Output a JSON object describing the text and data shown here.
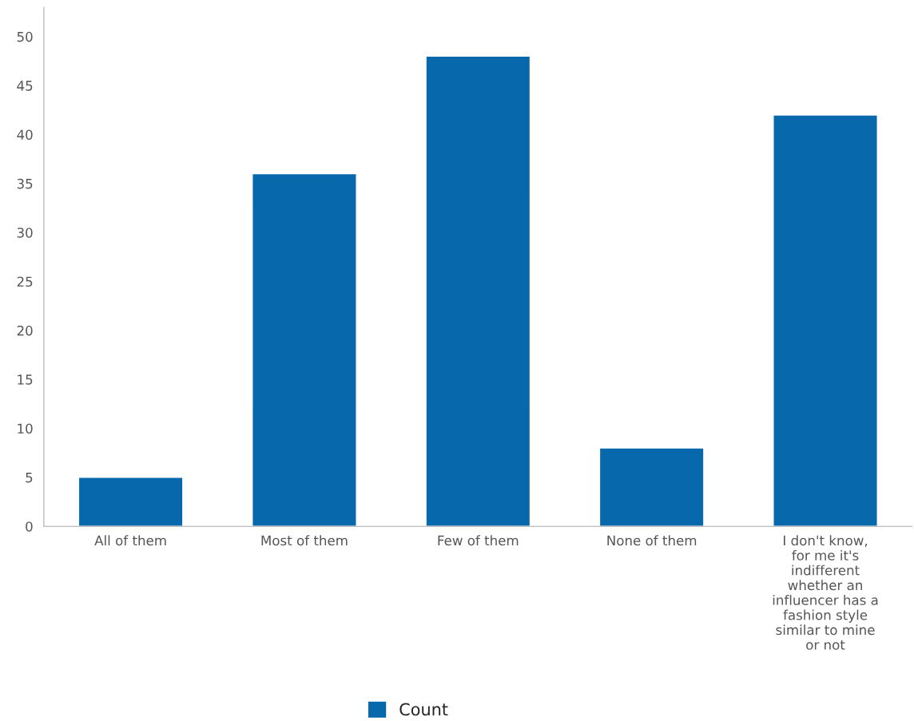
{
  "chart_data": {
    "type": "bar",
    "categories": [
      "All of them",
      "Most of them",
      "Few of them",
      "None of them",
      "I don't know,\nfor me it's\nindifferent\nwhether an\ninfluencer has a\nfashion style\nsimilar to mine\nor not"
    ],
    "series": [
      {
        "name": "Count",
        "color": "#0868ac",
        "values": [
          5,
          36,
          48,
          8,
          42
        ]
      }
    ],
    "ylim": [
      0,
      53
    ],
    "yticks": [
      0,
      5,
      10,
      15,
      20,
      25,
      30,
      35,
      40,
      45,
      50
    ],
    "grid": false,
    "legend": "bottom"
  }
}
